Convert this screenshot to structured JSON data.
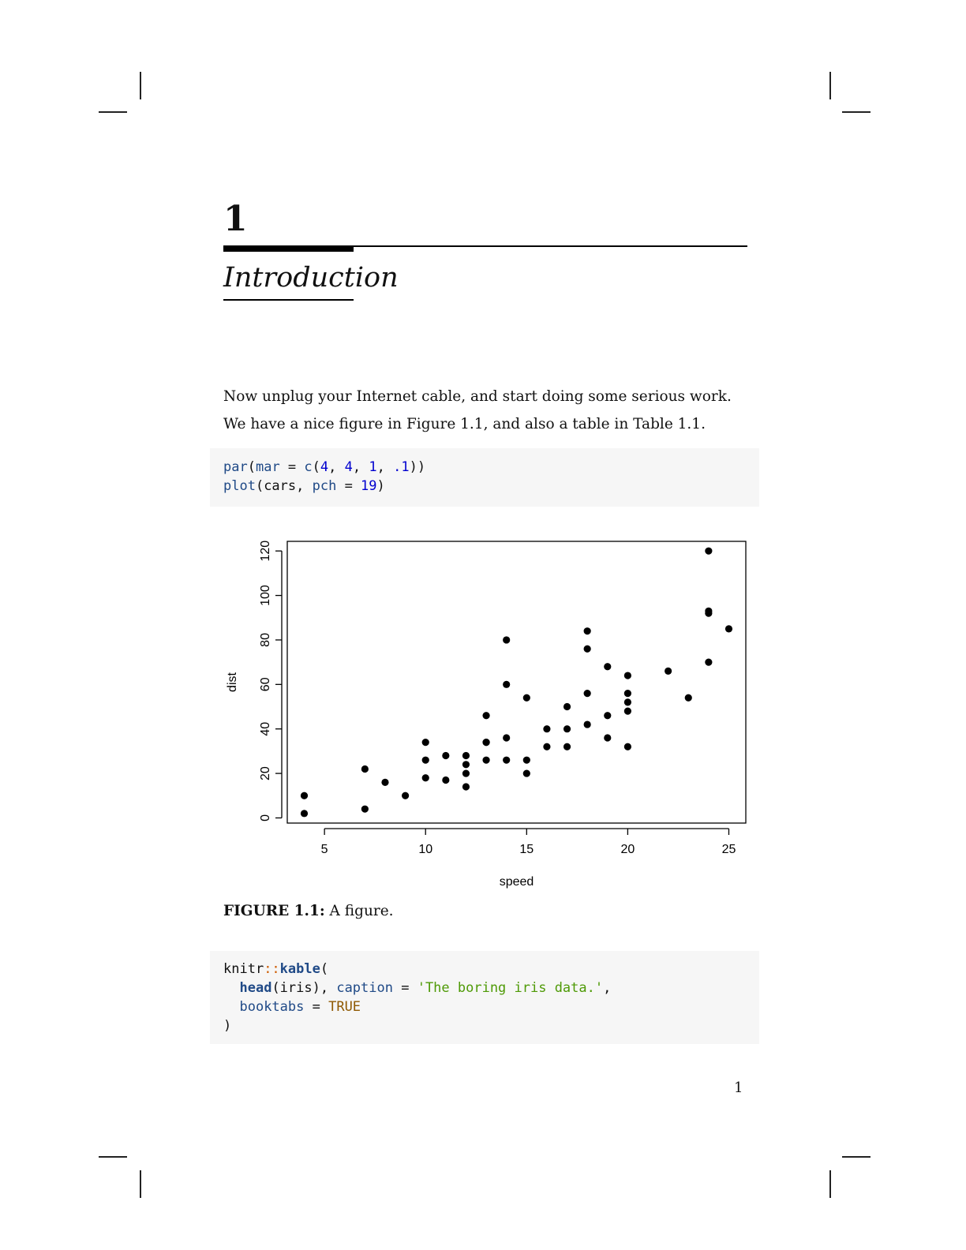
{
  "chapter": {
    "number": "1",
    "title": "Introduction"
  },
  "paragraphs": [
    "Now unplug your Internet cable, and start doing some serious work.",
    "We have a nice figure in Figure 1.1, and also a table in Table 1.1."
  ],
  "code1": {
    "line1": {
      "fn1": "par",
      "p1": "(",
      "arg": "mar",
      "eq": " = ",
      "fn2": "c",
      "p2": "(",
      "n1": "4",
      "c1": ", ",
      "n2": "4",
      "c2": ", ",
      "n3": "1",
      "c3": ", ",
      "n4": ".1",
      "end": "))"
    },
    "line2": {
      "fn": "plot",
      "p1": "(cars, ",
      "arg": "pch",
      "eq": " = ",
      "n": "19",
      "end": ")"
    }
  },
  "figure_caption": {
    "label": "FIGURE 1.1:",
    "text": " A figure."
  },
  "code2": {
    "line1": {
      "pkg": "knitr",
      "ns": "::",
      "fn": "kable",
      "p": "("
    },
    "line2": {
      "indent": "  ",
      "fn": "head",
      "p1": "(iris), ",
      "arg": "caption",
      "eq": " = ",
      "str": "'The boring iris data.'",
      "comma": ","
    },
    "line3": {
      "indent": "  ",
      "arg": "booktabs",
      "eq": " = ",
      "const": "TRUE"
    },
    "line4": {
      "p": ")"
    }
  },
  "page_number": "1",
  "chart_data": {
    "type": "scatter",
    "xlabel": "speed",
    "ylabel": "dist",
    "xlim": [
      3.16,
      25.84
    ],
    "ylim": [
      -2.32,
      124.32
    ],
    "xticks": [
      5,
      10,
      15,
      20,
      25
    ],
    "yticks": [
      0,
      20,
      40,
      60,
      80,
      100,
      120
    ],
    "grid": false,
    "marker_color": "#000000",
    "x": [
      4,
      4,
      7,
      7,
      8,
      9,
      10,
      10,
      10,
      11,
      11,
      12,
      12,
      12,
      12,
      13,
      13,
      13,
      13,
      14,
      14,
      14,
      14,
      15,
      15,
      15,
      16,
      16,
      17,
      17,
      17,
      18,
      18,
      18,
      18,
      19,
      19,
      19,
      20,
      20,
      20,
      20,
      20,
      22,
      23,
      24,
      24,
      24,
      24,
      25
    ],
    "y": [
      2,
      10,
      4,
      22,
      16,
      10,
      18,
      26,
      34,
      17,
      28,
      14,
      20,
      24,
      28,
      26,
      34,
      34,
      46,
      26,
      36,
      60,
      80,
      20,
      26,
      54,
      32,
      40,
      32,
      40,
      50,
      42,
      56,
      76,
      84,
      36,
      46,
      68,
      32,
      48,
      52,
      56,
      64,
      66,
      54,
      70,
      92,
      93,
      120,
      85
    ]
  }
}
